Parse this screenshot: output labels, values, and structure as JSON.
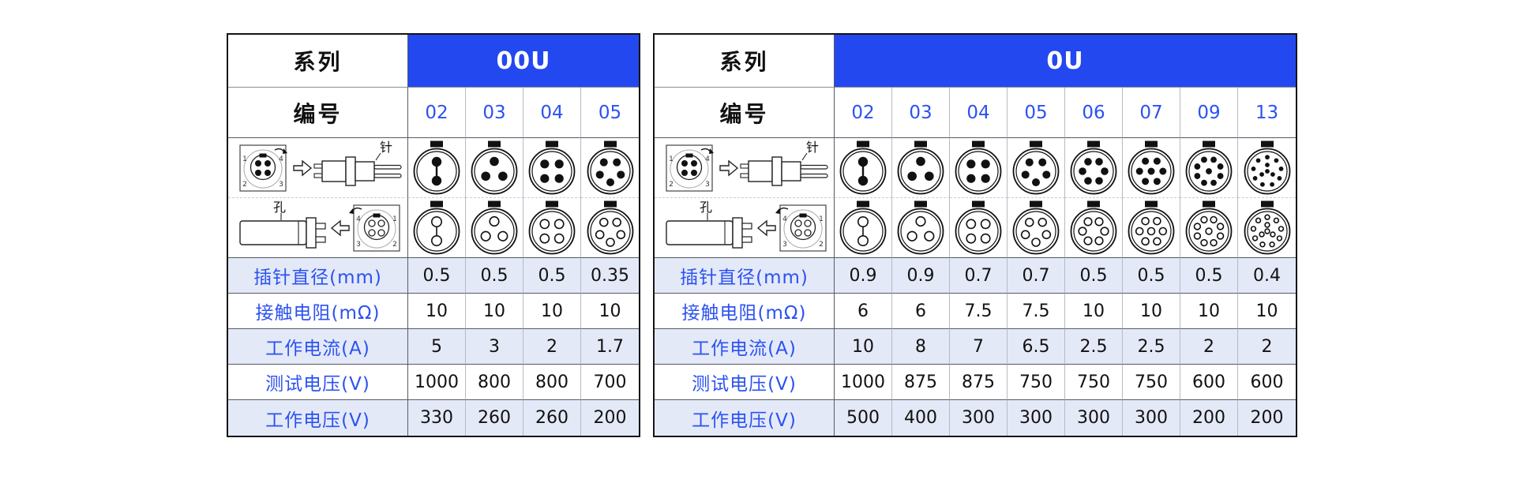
{
  "colors": {
    "header_blue": "#2348F0",
    "row_blue": "#E4E9F8",
    "label_blue": "#2B52F0"
  },
  "diagram": {
    "pin_label": "针",
    "socket_label": "孔",
    "pin_face_numbers": [
      "1",
      "4",
      "2",
      "3"
    ],
    "socket_face_numbers": [
      "4",
      "1",
      "3",
      "2"
    ]
  },
  "tables": [
    {
      "series_label": "系列",
      "series_value": "00U",
      "code_label": "编号",
      "codes": [
        "02",
        "03",
        "04",
        "05"
      ],
      "pin_counts": [
        2,
        3,
        4,
        5
      ],
      "spec_rows": [
        {
          "label": "插针直径(mm)",
          "values": [
            "0.5",
            "0.5",
            "0.5",
            "0.35"
          ],
          "shaded": true
        },
        {
          "label": "接触电阻(mΩ)",
          "values": [
            "10",
            "10",
            "10",
            "10"
          ],
          "shaded": false
        },
        {
          "label": "工作电流(A)",
          "values": [
            "5",
            "3",
            "2",
            "1.7"
          ],
          "shaded": true
        },
        {
          "label": "测试电压(V)",
          "values": [
            "1000",
            "800",
            "800",
            "700"
          ],
          "shaded": false
        },
        {
          "label": "工作电压(V)",
          "values": [
            "330",
            "260",
            "260",
            "200"
          ],
          "shaded": true
        }
      ]
    },
    {
      "series_label": "系列",
      "series_value": "0U",
      "code_label": "编号",
      "codes": [
        "02",
        "03",
        "04",
        "05",
        "06",
        "07",
        "09",
        "13"
      ],
      "pin_counts": [
        2,
        3,
        4,
        5,
        6,
        7,
        9,
        13
      ],
      "spec_rows": [
        {
          "label": "插针直径(mm)",
          "values": [
            "0.9",
            "0.9",
            "0.7",
            "0.7",
            "0.5",
            "0.5",
            "0.5",
            "0.4"
          ],
          "shaded": true
        },
        {
          "label": "接触电阻(mΩ)",
          "values": [
            "6",
            "6",
            "7.5",
            "7.5",
            "10",
            "10",
            "10",
            "10"
          ],
          "shaded": false
        },
        {
          "label": "工作电流(A)",
          "values": [
            "10",
            "8",
            "7",
            "6.5",
            "2.5",
            "2.5",
            "2",
            "2"
          ],
          "shaded": true
        },
        {
          "label": "测试电压(V)",
          "values": [
            "1000",
            "875",
            "875",
            "750",
            "750",
            "750",
            "600",
            "600"
          ],
          "shaded": false
        },
        {
          "label": "工作电压(V)",
          "values": [
            "500",
            "400",
            "300",
            "300",
            "300",
            "300",
            "200",
            "200"
          ],
          "shaded": true
        }
      ]
    }
  ]
}
